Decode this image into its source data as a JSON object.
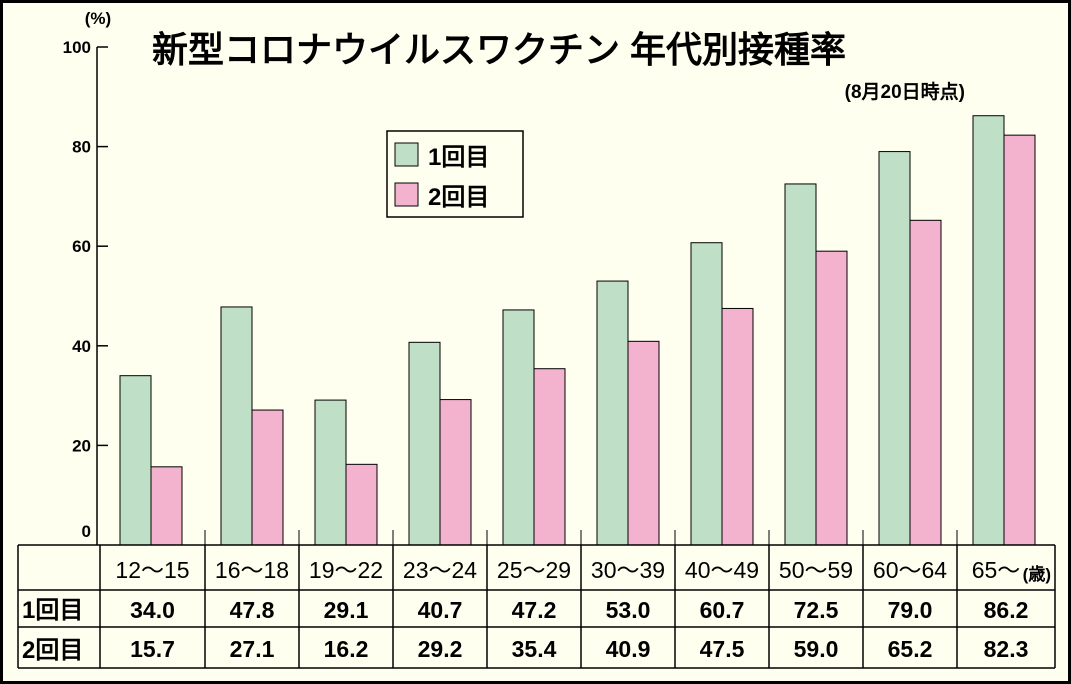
{
  "chart_data": {
    "type": "bar",
    "title": "新型コロナウイルスワクチン 年代別接種率",
    "subtitle": "(8月20日時点)",
    "ylabel": "(%)",
    "ylim": [
      0,
      100
    ],
    "yticks": [
      "100",
      "80",
      "60",
      "40",
      "20",
      "0"
    ],
    "ytick_values": [
      100,
      80,
      60,
      40,
      20,
      0
    ],
    "categories": [
      "12〜15",
      "16〜18",
      "19〜22",
      "23〜24",
      "25〜29",
      "30〜39",
      "40〜49",
      "50〜59",
      "60〜64",
      "65〜"
    ],
    "category_unit": "(歳)",
    "series": [
      {
        "name": "1回目",
        "color": "#bfdfc6",
        "values": [
          34.0,
          47.8,
          29.1,
          40.7,
          47.2,
          53.0,
          60.7,
          72.5,
          79.0,
          86.2
        ],
        "labels": [
          "34.0",
          "47.8",
          "29.1",
          "40.7",
          "47.2",
          "53.0",
          "60.7",
          "72.5",
          "79.0",
          "86.2"
        ]
      },
      {
        "name": "2回目",
        "color": "#f3b3cf",
        "values": [
          15.7,
          27.1,
          16.2,
          29.2,
          35.4,
          40.9,
          47.5,
          59.0,
          65.2,
          82.3
        ],
        "labels": [
          "15.7",
          "27.1",
          "16.2",
          "29.2",
          "35.4",
          "40.9",
          "47.5",
          "59.0",
          "65.2",
          "82.3"
        ]
      }
    ],
    "legend": "top-center",
    "grid": false
  }
}
